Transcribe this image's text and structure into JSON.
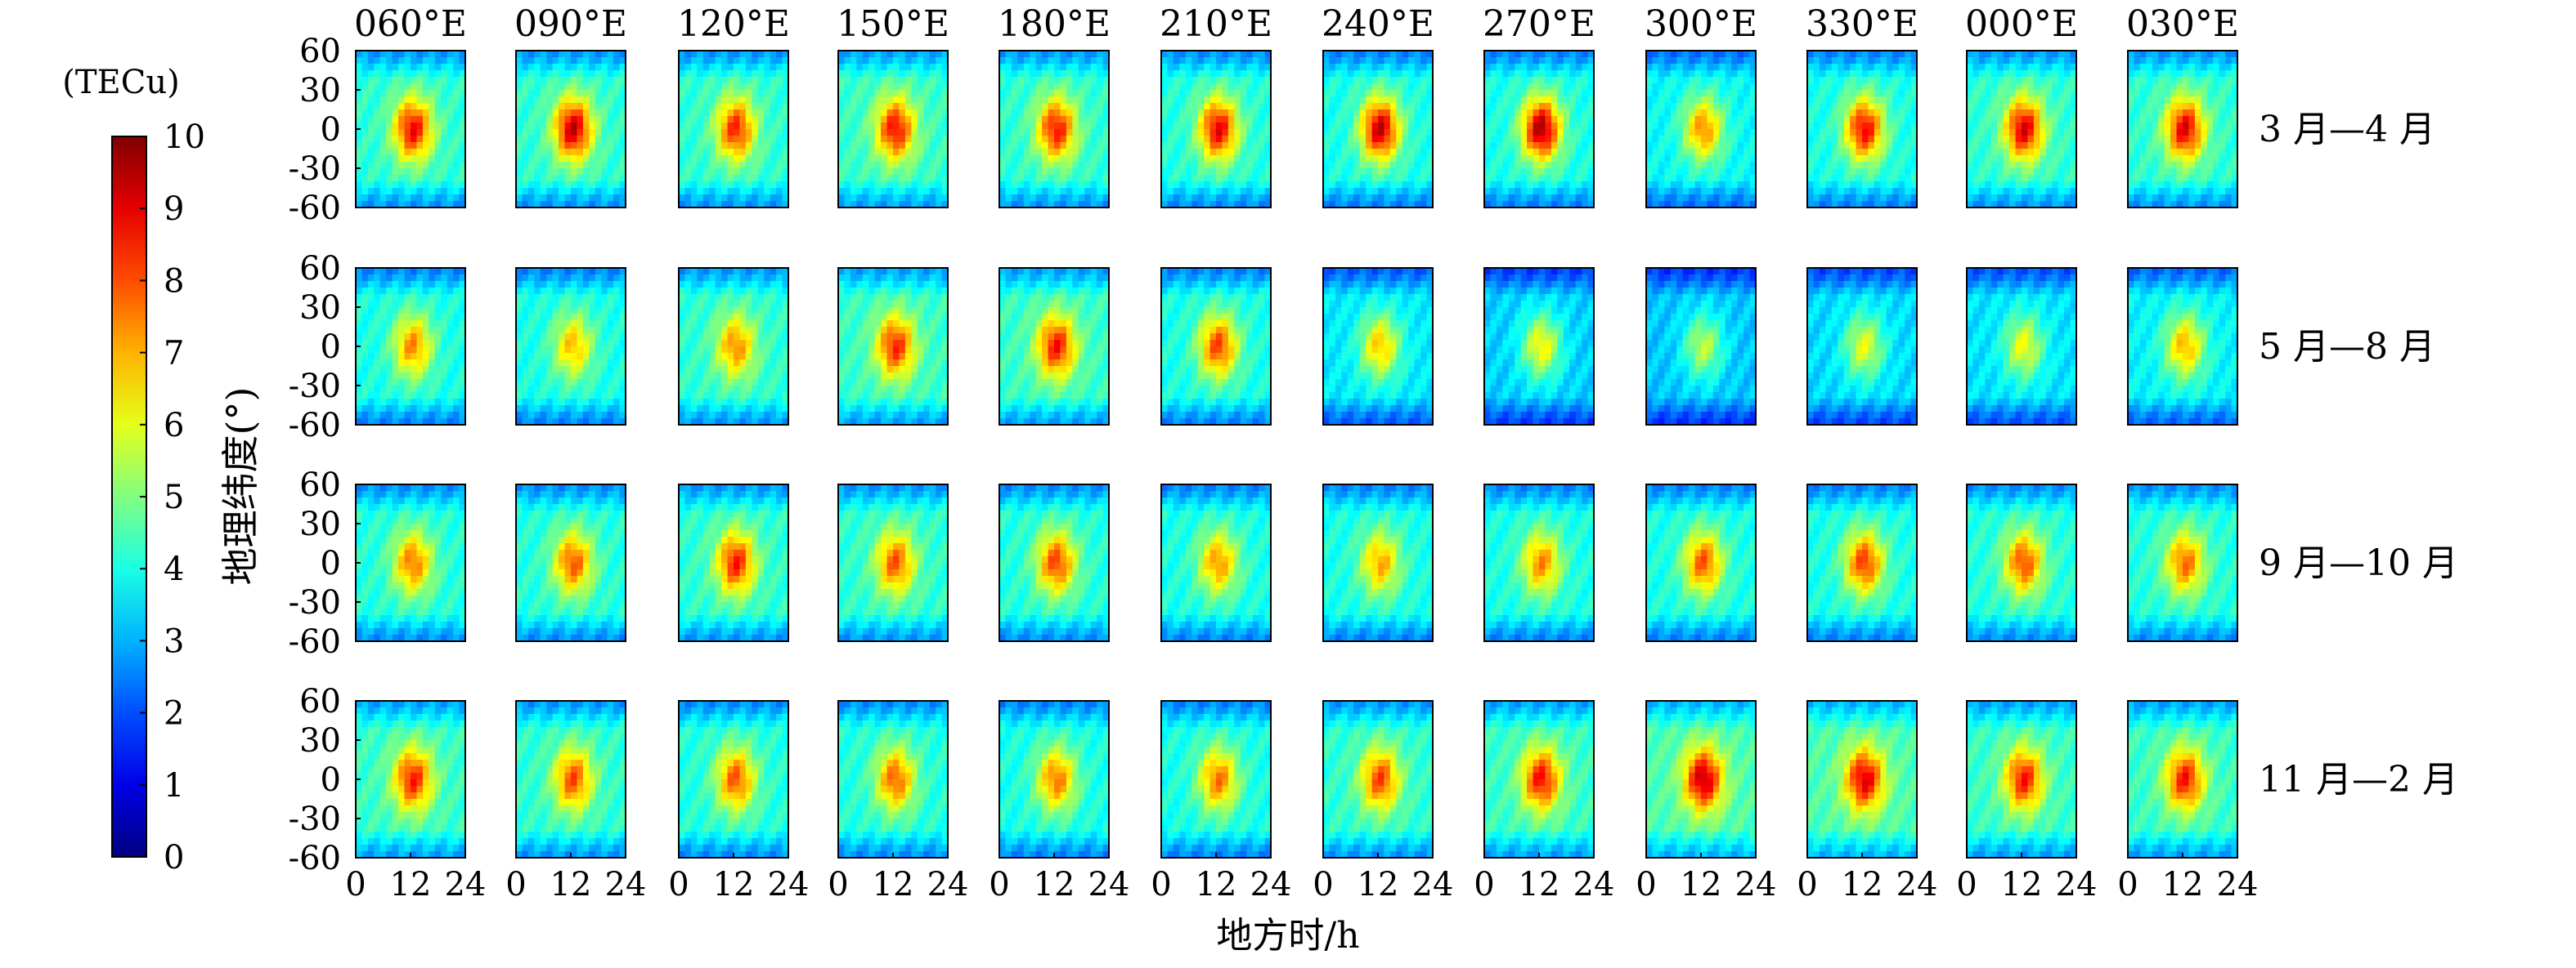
{
  "chart_data": {
    "type": "heatmap",
    "xlabel": "地方时/h",
    "ylabel": "地理纬度(°)",
    "colorbar": {
      "label": "(TECu)",
      "range": [
        0,
        10
      ],
      "ticks": [
        "0",
        "1",
        "2",
        "3",
        "4",
        "5",
        "6",
        "7",
        "8",
        "9",
        "10"
      ],
      "colormap": "jet"
    },
    "x_ticks": [
      "0",
      "12",
      "24"
    ],
    "y_ticks": [
      "60",
      "30",
      "0",
      "-30",
      "-60"
    ],
    "xlim": [
      0,
      24
    ],
    "ylim": [
      -60,
      60
    ],
    "columns": [
      "060°E",
      "090°E",
      "120°E",
      "150°E",
      "180°E",
      "210°E",
      "240°E",
      "270°E",
      "300°E",
      "330°E",
      "000°E",
      "030°E"
    ],
    "rows": [
      "3 月—4 月",
      "5 月—8 月",
      "9 月—10 月",
      "11 月—2 月"
    ],
    "background_tec": [
      [
        4.2,
        4.2,
        4.2,
        4.3,
        4.2,
        4.1,
        4.0,
        4.0,
        3.8,
        4.0,
        4.2,
        4.2
      ],
      [
        4.0,
        4.0,
        4.2,
        4.3,
        4.3,
        4.0,
        3.6,
        3.3,
        3.2,
        3.4,
        3.5,
        3.7
      ],
      [
        4.1,
        4.1,
        4.2,
        4.2,
        4.1,
        4.0,
        4.0,
        4.0,
        4.0,
        4.0,
        4.1,
        4.1
      ],
      [
        4.3,
        4.2,
        4.1,
        4.1,
        4.0,
        4.0,
        4.2,
        4.3,
        4.5,
        4.5,
        4.3,
        4.3
      ]
    ],
    "peak_tec": [
      [
        8.8,
        9.3,
        8.4,
        8.7,
        8.6,
        8.9,
        9.3,
        9.6,
        7.4,
        8.8,
        9.1,
        9.0
      ],
      [
        7.4,
        6.9,
        7.4,
        8.4,
        8.6,
        8.1,
        6.8,
        6.3,
        5.6,
        6.0,
        6.1,
        7.0
      ],
      [
        7.6,
        7.9,
        8.5,
        7.9,
        8.1,
        7.3,
        7.1,
        7.4,
        7.9,
        8.2,
        8.0,
        7.7
      ],
      [
        8.5,
        8.0,
        7.9,
        7.8,
        7.6,
        7.6,
        8.1,
        8.7,
        9.4,
        9.1,
        8.6,
        8.6
      ]
    ]
  }
}
